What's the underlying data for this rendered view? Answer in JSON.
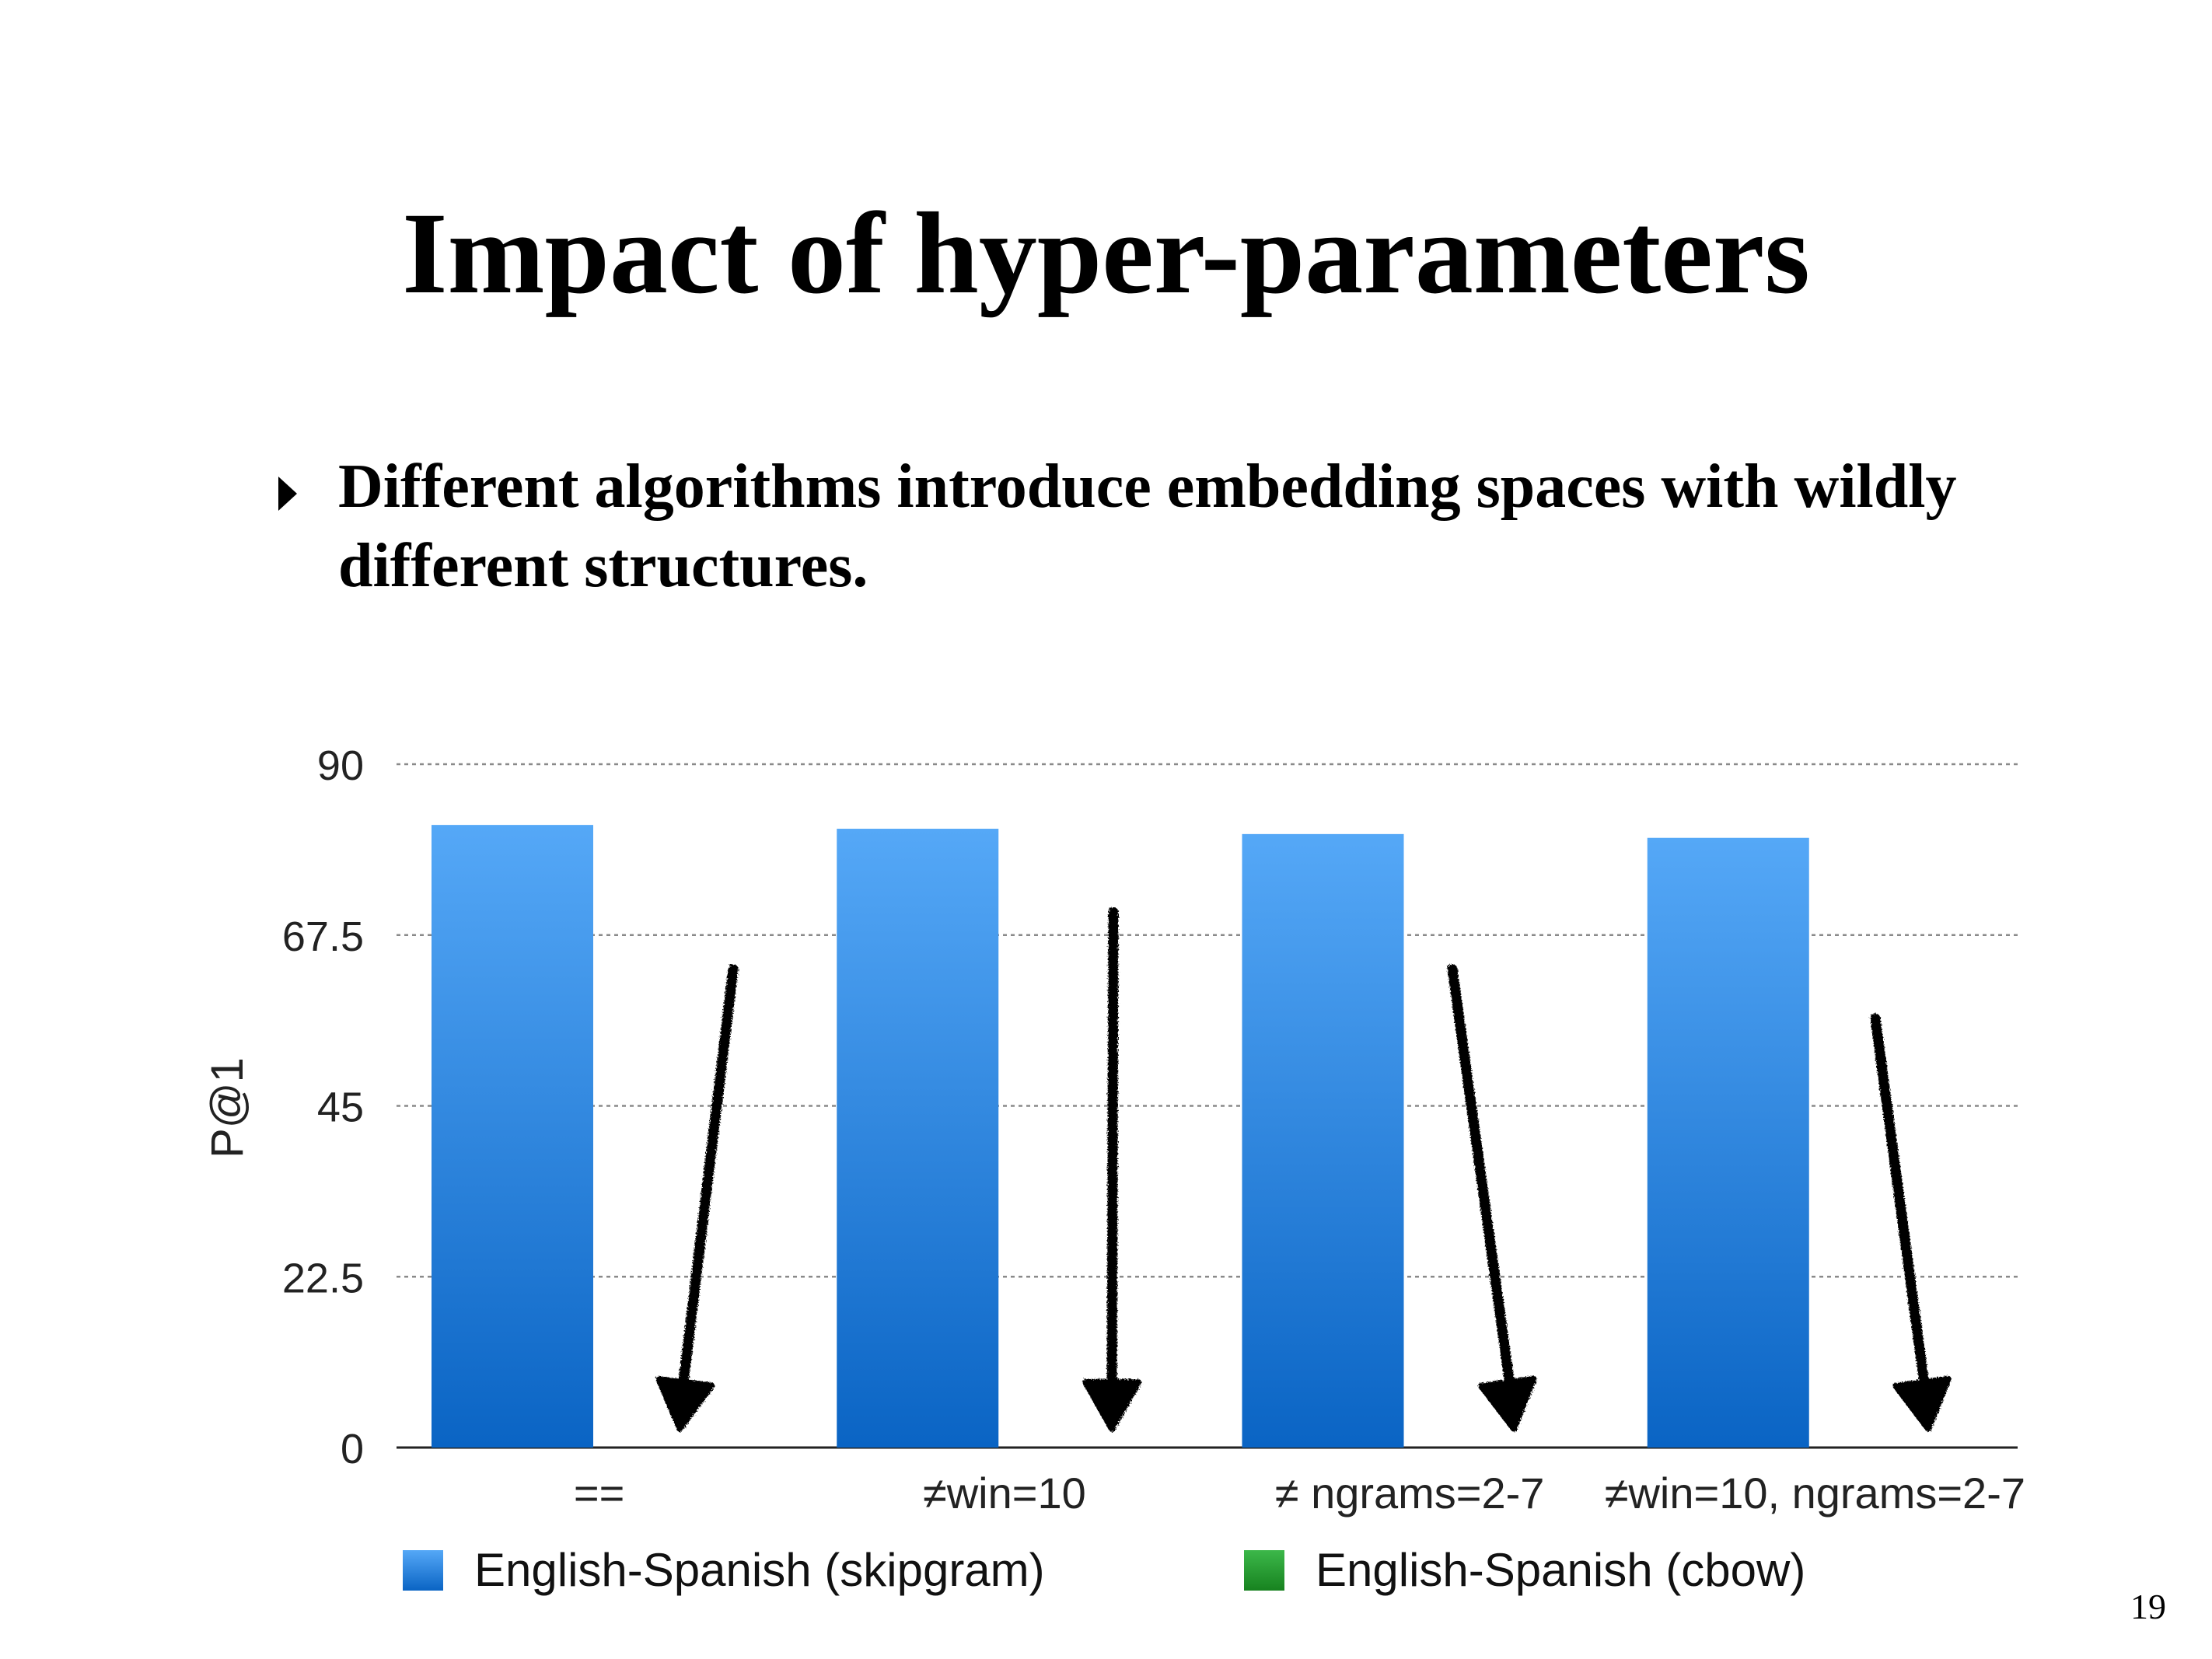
{
  "slide": {
    "title": "Impact of hyper-parameters",
    "bullet": "Different algorithms introduce embedding spaces with wildly different structures.",
    "page_number": "19"
  },
  "colors": {
    "skipgram_top": "#55a8f7",
    "skipgram_bottom": "#0a64c4",
    "cbow_top": "#3cb84a",
    "cbow_bottom": "#17821f",
    "gridline": "#8a8a8a",
    "arrow": "#000000"
  },
  "chart_data": {
    "type": "bar",
    "ylabel": "P@1",
    "xlabel": "",
    "ylim": [
      0,
      90
    ],
    "yticks": [
      "0",
      "22.5",
      "45",
      "67.5",
      "90"
    ],
    "ytick_values": [
      0,
      22.5,
      45,
      67.5,
      90
    ],
    "grid": true,
    "legend_position": "bottom",
    "categories": [
      "==",
      "≠win=10",
      "≠ ngrams=2-7",
      "≠win=10, ngrams=2-7"
    ],
    "series": [
      {
        "name": "English-Spanish (skipgram)",
        "values": [
          82,
          81.5,
          80.8,
          80.3
        ]
      },
      {
        "name": "English-Spanish (cbow)",
        "values": [
          null,
          null,
          null,
          null
        ]
      }
    ],
    "annotations": [
      {
        "type": "downward-arrow",
        "category_index": 0,
        "from": 63,
        "to": 4
      },
      {
        "type": "downward-arrow",
        "category_index": 1,
        "from": 70.5,
        "to": 4
      },
      {
        "type": "downward-arrow",
        "category_index": 2,
        "from": 63,
        "to": 4
      },
      {
        "type": "downward-arrow",
        "category_index": 3,
        "from": 56.5,
        "to": 4
      }
    ]
  }
}
